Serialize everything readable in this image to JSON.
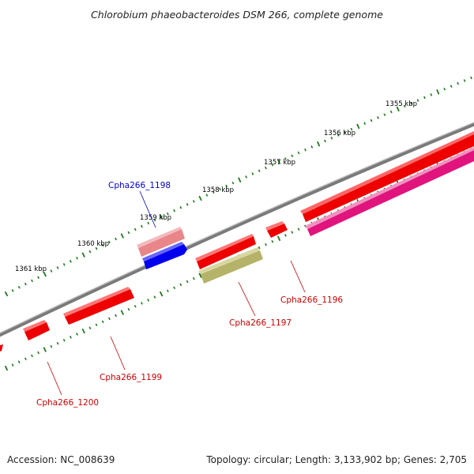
{
  "title": "Chlorobium phaeobacteroides DSM 266, complete genome",
  "accession": "Accession: NC_008639",
  "topology": "Topology: circular; Length: 3,133,902 bp; Genes: 2,705",
  "colors": {
    "backbone": "#7a7a7a",
    "ticks": "#1f7a1f",
    "gene_forward": "#ee0000",
    "gene_reverse": "#ee0000",
    "rna_pink": "#e8868a",
    "blue": "#0000ee",
    "olive": "#b5b36a",
    "magenta": "#e0147c",
    "label_red": "#cc0000",
    "label_blue": "#0000cc"
  },
  "scale_labels": [
    "1355 kbp",
    "1356 kbp",
    "1357 kbp",
    "1358 kbp",
    "1359 kbp",
    "1360 kbp",
    "1361 kbp"
  ],
  "gene_labels": [
    {
      "text": "Cpha266_1196",
      "color": "red"
    },
    {
      "text": "Cpha266_1197",
      "color": "red"
    },
    {
      "text": "Cpha266_1198",
      "color": "blue"
    },
    {
      "text": "Cpha266_1199",
      "color": "red"
    },
    {
      "text": "Cpha266_1200",
      "color": "red"
    }
  ]
}
